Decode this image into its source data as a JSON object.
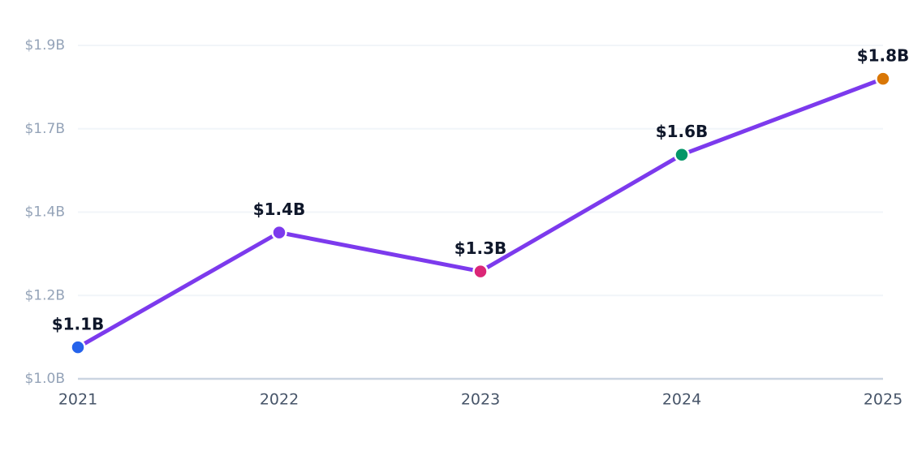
{
  "chart_data": {
    "type": "line",
    "categories": [
      "2021",
      "2022",
      "2023",
      "2024",
      "2025"
    ],
    "values": [
      1.085,
      1.395,
      1.29,
      1.605,
      1.81
    ],
    "value_labels": [
      "$1.1B",
      "$1.4B",
      "$1.3B",
      "$1.6B",
      "$1.8B"
    ],
    "color": "#7c3aed",
    "point_colors": [
      "#2563eb",
      "#7c3aed",
      "#db2777",
      "#059669",
      "#d97706"
    ],
    "ylim": [
      1.0,
      1.9
    ],
    "yticks": [
      {
        "value": 1.0,
        "label": "$1.0B"
      },
      {
        "value": 1.225,
        "label": "$1.2B"
      },
      {
        "value": 1.45,
        "label": "$1.4B"
      },
      {
        "value": 1.675,
        "label": "$1.7B"
      },
      {
        "value": 1.9,
        "label": "$1.9B"
      }
    ],
    "grid": true
  }
}
